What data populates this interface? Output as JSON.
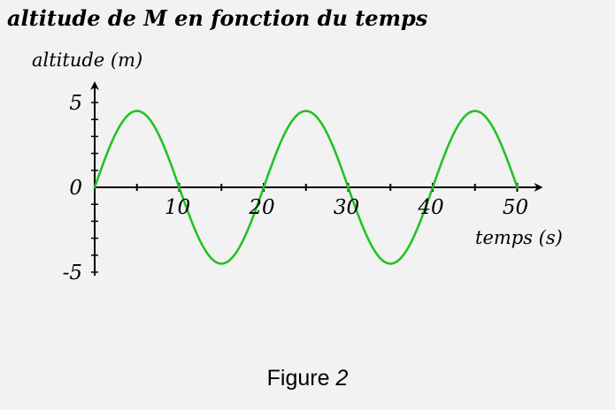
{
  "chart_data": {
    "type": "line",
    "title": "altitude de M en fonction du temps",
    "xlabel": "temps (s)",
    "ylabel": "altitude (m)",
    "xlim": [
      0,
      52
    ],
    "ylim": [
      -5,
      5
    ],
    "x_ticks": [
      10,
      20,
      30,
      40,
      50
    ],
    "y_ticks": [
      5,
      0,
      -5
    ],
    "x_tick_labels": [
      "10",
      "20",
      "30",
      "40",
      "50"
    ],
    "y_tick_labels": [
      "5",
      "0",
      "-5"
    ],
    "series": [
      {
        "function": "4.5*sin(2*pi*t/20)",
        "x": [
          0,
          2.5,
          5,
          7.5,
          10,
          12.5,
          15,
          17.5,
          20,
          22.5,
          25,
          27.5,
          30,
          32.5,
          35,
          37.5,
          40,
          42.5,
          45,
          47.5,
          50
        ],
        "values": [
          0,
          3.18,
          4.5,
          3.18,
          0,
          -3.18,
          -4.5,
          -3.18,
          0,
          3.18,
          4.5,
          3.18,
          0,
          -3.18,
          -4.5,
          -3.18,
          0,
          3.18,
          4.5,
          3.18,
          0
        ],
        "color": "#22c322"
      }
    ],
    "grid": false,
    "axis_color": "#000000"
  },
  "caption": {
    "word": "Figure",
    "number": "2"
  }
}
